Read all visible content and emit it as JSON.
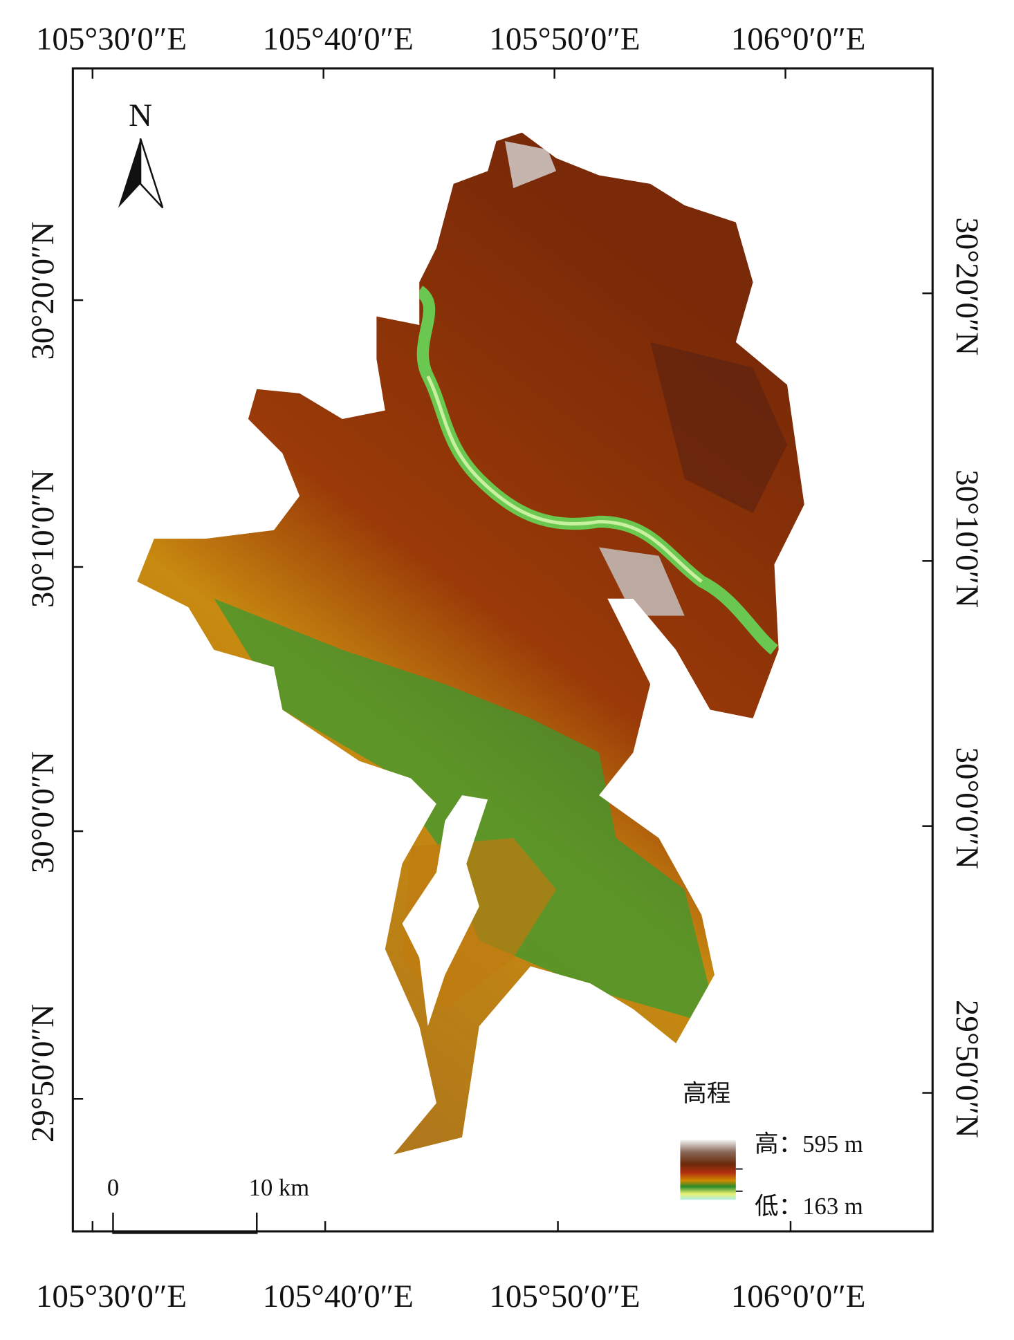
{
  "map": {
    "lon_labels": [
      "105°30′0″E",
      "105°40′0″E",
      "105°50′0″E",
      "106°0′0″E"
    ],
    "lat_labels": [
      "30°20′0″N",
      "30°10′0″N",
      "30°0′0″N",
      "29°50′0″N"
    ],
    "north": "N",
    "legend": {
      "title": "高程",
      "high": "高：595 m",
      "low": "低：163 m"
    },
    "scale_bar": [
      "0",
      "10 km"
    ]
  }
}
